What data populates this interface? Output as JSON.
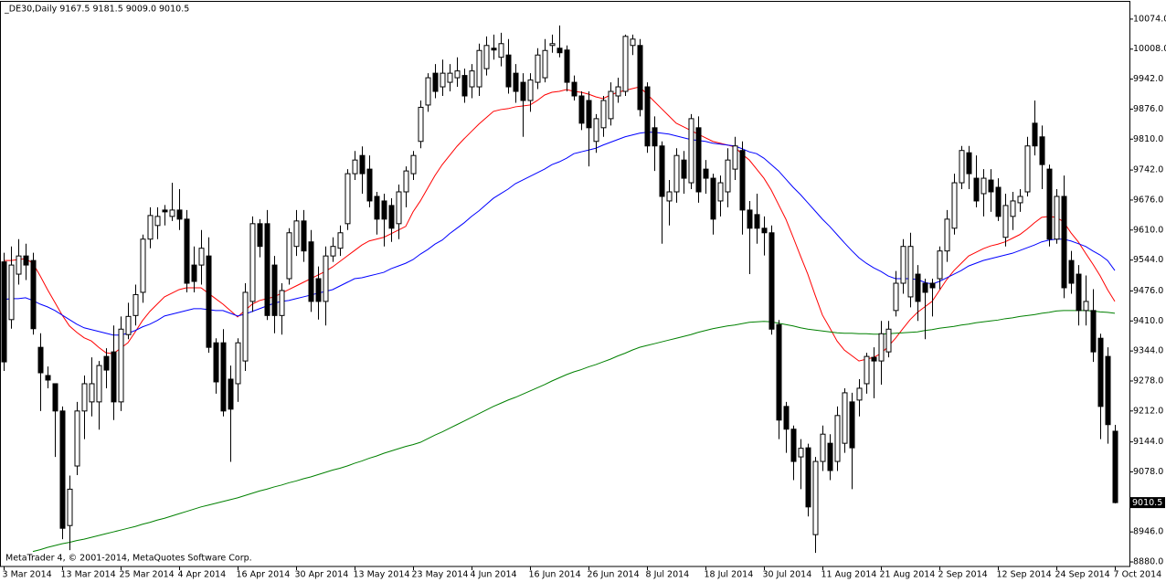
{
  "chart_data": {
    "type": "candlestick",
    "title": "_DE30,Daily  9167.5 9181.5 9009.0 9010.5",
    "footer": "MetaTrader 4, © 2001-2014, MetaQuotes Software Corp.",
    "categories": [
      "3 Mar 2014",
      null,
      null,
      null,
      null,
      null,
      null,
      null,
      "13 Mar 2014",
      null,
      null,
      null,
      null,
      null,
      null,
      null,
      "25 Mar 2014",
      null,
      null,
      null,
      null,
      null,
      null,
      null,
      "4 Apr 2014",
      null,
      null,
      null,
      null,
      null,
      null,
      null,
      "16 Apr 2014",
      null,
      null,
      null,
      null,
      null,
      null,
      null,
      "30 Apr 2014",
      null,
      null,
      null,
      null,
      null,
      null,
      null,
      "13 May 2014",
      null,
      null,
      null,
      null,
      null,
      null,
      null,
      "23 May 2014",
      null,
      null,
      null,
      null,
      null,
      null,
      null,
      "4 Jun 2014",
      null,
      null,
      null,
      null,
      null,
      null,
      null,
      "16 Jun 2014",
      null,
      null,
      null,
      null,
      null,
      null,
      null,
      "26 Jun 2014",
      null,
      null,
      null,
      null,
      null,
      null,
      null,
      "8 Jul 2014",
      null,
      null,
      null,
      null,
      null,
      null,
      null,
      "18 Jul 2014",
      null,
      null,
      null,
      null,
      null,
      null,
      null,
      "30 Jul 2014",
      null,
      null,
      null,
      null,
      null,
      null,
      null,
      "11 Aug 2014",
      null,
      null,
      null,
      null,
      null,
      null,
      null,
      "21 Aug 2014",
      null,
      null,
      null,
      null,
      null,
      null,
      null,
      "2 Sep 2014",
      null,
      null,
      null,
      null,
      null,
      null,
      null,
      "12 Sep 2014",
      null,
      null,
      null,
      null,
      null,
      null,
      null,
      "24 Sep 2014",
      null,
      null,
      null,
      null,
      null,
      null,
      null,
      "7 Oct 2014"
    ],
    "open": [
      9540,
      9413,
      9513,
      9553,
      9543,
      9352,
      9290,
      9272,
      9212,
      8960,
      9091,
      9212,
      9232,
      9232,
      9332,
      9342,
      9232,
      9380,
      9422,
      9473,
      9590,
      9620,
      9654,
      9640,
      9654,
      9634,
      9533,
      9533,
      9553,
      9362,
      9362,
      9282,
      9272,
      9322,
      9453,
      9624,
      9624,
      9533,
      9422,
      9503,
      9574,
      9630,
      9584,
      9503,
      9453,
      9553,
      9570,
      9624,
      9734,
      9774,
      9744,
      9684,
      9674,
      9664,
      9624,
      9694,
      9734,
      9805,
      9885,
      9955,
      9925,
      9935,
      9945,
      9950,
      9925,
      9925,
      9965,
      10010,
      9990,
      9995,
      9955,
      9935,
      9895,
      9935,
      9945,
      10016,
      10010,
      10006,
      9935,
      9905,
      9895,
      9805,
      9835,
      9855,
      9905,
      9915,
      10016,
      10016,
      9925,
      9835,
      9795,
      9674,
      9694,
      9764,
      9714,
      9835,
      9744,
      9724,
      9674,
      9694,
      9744,
      9785,
      9654,
      9644,
      9614,
      9604,
      9402,
      9222,
      9172,
      9111,
      9131,
      8940,
      9101,
      9141,
      9101,
      9141,
      9232,
      9236,
      9272,
      9330,
      9322,
      9342,
      9433,
      9493,
      9463,
      9513,
      9493,
      9493,
      9503,
      9564,
      9614,
      9714,
      9780,
      9724,
      9690,
      9720,
      9704,
      9594,
      9640,
      9670,
      9694,
      9845,
      9815,
      9744,
      9590,
      9684,
      9543,
      9513,
      9433,
      9433,
      9372,
      9332,
      9167.5
    ],
    "high": [
      9560,
      9574,
      9590,
      9580,
      9560,
      9383,
      9310,
      9272,
      9222,
      9070,
      9232,
      9290,
      9330,
      9322,
      9350,
      9400,
      9420,
      9450,
      9490,
      9600,
      9660,
      9660,
      9665,
      9714,
      9700,
      9654,
      9574,
      9610,
      9594,
      9372,
      9392,
      9312,
      9372,
      9493,
      9640,
      9634,
      9654,
      9553,
      9493,
      9614,
      9654,
      9654,
      9610,
      9530,
      9574,
      9594,
      9620,
      9744,
      9784,
      9794,
      9774,
      9694,
      9690,
      9680,
      9710,
      9750,
      9784,
      9895,
      9955,
      9975,
      9985,
      9975,
      9990,
      9965,
      9975,
      10020,
      10036,
      10040,
      10044,
      10030,
      9975,
      9955,
      9955,
      10010,
      10030,
      10040,
      10060,
      10016,
      9950,
      9915,
      9915,
      9865,
      9905,
      9935,
      9945,
      10040,
      10040,
      10030,
      9935,
      9860,
      9805,
      9720,
      9790,
      9784,
      9865,
      9860,
      9764,
      9734,
      9730,
      9790,
      9815,
      9805,
      9674,
      9690,
      9640,
      9620,
      9412,
      9232,
      9180,
      9150,
      9140,
      9111,
      9180,
      9161,
      9222,
      9262,
      9252,
      9282,
      9340,
      9352,
      9410,
      9410,
      9520,
      9590,
      9604,
      9533,
      9503,
      9503,
      9574,
      9654,
      9734,
      9795,
      9795,
      9774,
      9744,
      9744,
      9724,
      9690,
      9694,
      9700,
      9815,
      9895,
      9840,
      9754,
      9700,
      9730,
      9564,
      9533,
      9510,
      9480,
      9382,
      9352,
      9181.5
    ],
    "low": [
      9300,
      9393,
      9490,
      9500,
      9380,
      9212,
      9262,
      9111,
      8930,
      8906,
      9071,
      9150,
      9200,
      9171,
      9262,
      9192,
      9212,
      9370,
      9400,
      9450,
      9570,
      9590,
      9620,
      9630,
      9610,
      9473,
      9473,
      9490,
      9340,
      9250,
      9200,
      9100,
      9232,
      9300,
      9430,
      9550,
      9412,
      9383,
      9380,
      9490,
      9553,
      9540,
      9430,
      9413,
      9400,
      9540,
      9553,
      9610,
      9720,
      9690,
      9660,
      9600,
      9574,
      9584,
      9590,
      9660,
      9720,
      9790,
      9870,
      9900,
      9905,
      9915,
      9925,
      9890,
      9900,
      9905,
      9950,
      9985,
      9970,
      9910,
      9890,
      9815,
      9870,
      9920,
      9935,
      10000,
      9990,
      9915,
      9895,
      9830,
      9750,
      9780,
      9815,
      9840,
      9890,
      9905,
      9995,
      9860,
      9780,
      9740,
      9580,
      9620,
      9670,
      9690,
      9700,
      9670,
      9690,
      9600,
      9640,
      9660,
      9720,
      9600,
      9513,
      9580,
      9554,
      9380,
      9150,
      9120,
      9060,
      9040,
      8980,
      8900,
      9080,
      9060,
      9080,
      9120,
      9040,
      9200,
      9250,
      9240,
      9270,
      9330,
      9420,
      9470,
      9440,
      9410,
      9370,
      9420,
      9480,
      9540,
      9600,
      9700,
      9700,
      9660,
      9640,
      9650,
      9630,
      9574,
      9610,
      9650,
      9684,
      9774,
      9700,
      9574,
      9580,
      9460,
      9470,
      9400,
      9400,
      9320,
      9150,
      9140,
      9009
    ],
    "close": [
      9320,
      9533,
      9553,
      9533,
      9393,
      9296,
      9280,
      9212,
      8954,
      9040,
      9212,
      9272,
      9272,
      9312,
      9302,
      9232,
      9392,
      9420,
      9468,
      9590,
      9642,
      9640,
      9650,
      9654,
      9634,
      9493,
      9497,
      9570,
      9352,
      9276,
      9212,
      9216,
      9362,
      9473,
      9624,
      9574,
      9422,
      9422,
      9477,
      9604,
      9630,
      9564,
      9453,
      9453,
      9553,
      9574,
      9604,
      9734,
      9764,
      9734,
      9674,
      9634,
      9634,
      9614,
      9694,
      9740,
      9774,
      9880,
      9945,
      9915,
      9955,
      9955,
      9960,
      9905,
      9960,
      10005,
      10016,
      10006,
      10020,
      9925,
      9915,
      9895,
      9940,
      9995,
      10005,
      10020,
      10000,
      9935,
      9905,
      9845,
      9835,
      9855,
      9895,
      9915,
      9925,
      10036,
      10030,
      9875,
      9795,
      9795,
      9684,
      9694,
      9774,
      9724,
      9855,
      9694,
      9724,
      9634,
      9714,
      9764,
      9795,
      9654,
      9614,
      9614,
      9604,
      9392,
      9192,
      9172,
      9101,
      9130,
      9001,
      9101,
      9161,
      9081,
      9202,
      9252,
      9131,
      9262,
      9332,
      9322,
      9382,
      9392,
      9493,
      9574,
      9574,
      9453,
      9473,
      9483,
      9564,
      9634,
      9714,
      9785,
      9734,
      9674,
      9724,
      9694,
      9640,
      9664,
      9674,
      9684,
      9795,
      9795,
      9754,
      9590,
      9684,
      9483,
      9493,
      9433,
      9453,
      9342,
      9222,
      9182,
      9010.5
    ],
    "up_color": "#ffffff",
    "down_color": "#000000",
    "overlays": [
      {
        "color": "#ff0000",
        "values": [
          9543,
          9543,
          9545,
          9547,
          9537,
          9509,
          9479,
          9451,
          9423,
          9399,
          9385,
          9373,
          9366,
          9352,
          9340,
          9338,
          9350,
          9362,
          9386,
          9411,
          9431,
          9447,
          9463,
          9471,
          9479,
          9483,
          9483,
          9483,
          9471,
          9459,
          9447,
          9433,
          9419,
          9433,
          9447,
          9455,
          9459,
          9463,
          9471,
          9479,
          9487,
          9495,
          9503,
          9511,
          9519,
          9529,
          9541,
          9553,
          9565,
          9577,
          9586,
          9590,
          9594,
          9602,
          9610,
          9618,
          9650,
          9674,
          9702,
          9730,
          9754,
          9774,
          9794,
          9811,
          9827,
          9843,
          9857,
          9871,
          9875,
          9877,
          9881,
          9883,
          9885,
          9895,
          9907,
          9913,
          9915,
          9919,
          9915,
          9913,
          9909,
          9903,
          9899,
          9907,
          9913,
          9917,
          9921,
          9925,
          9909,
          9893,
          9877,
          9861,
          9845,
          9837,
          9829,
          9821,
          9813,
          9805,
          9801,
          9797,
          9793,
          9777,
          9764,
          9744,
          9724,
          9698,
          9666,
          9634,
          9594,
          9553,
          9513,
          9467,
          9423,
          9395,
          9366,
          9346,
          9334,
          9322,
          9326,
          9330,
          9338,
          9354,
          9372,
          9393,
          9413,
          9429,
          9441,
          9453,
          9477,
          9501,
          9521,
          9537,
          9553,
          9561,
          9569,
          9575,
          9579,
          9584,
          9592,
          9600,
          9612,
          9626,
          9638,
          9640,
          9638,
          9628,
          9604,
          9584,
          9559,
          9535,
          9509,
          9479,
          9453
        ]
      },
      {
        "color": "#0000ff",
        "values": [
          9457,
          9459,
          9459,
          9461,
          9455,
          9447,
          9441,
          9433,
          9423,
          9413,
          9403,
          9395,
          9391,
          9387,
          9383,
          9379,
          9379,
          9383,
          9389,
          9397,
          9403,
          9411,
          9421,
          9425,
          9429,
          9433,
          9437,
          9437,
          9435,
          9433,
          9433,
          9427,
          9421,
          9425,
          9431,
          9437,
          9443,
          9449,
          9453,
          9455,
          9459,
          9463,
          9467,
          9471,
          9475,
          9479,
          9487,
          9495,
          9503,
          9505,
          9509,
          9513,
          9517,
          9525,
          9531,
          9537,
          9545,
          9557,
          9567,
          9579,
          9588,
          9602,
          9614,
          9626,
          9640,
          9652,
          9666,
          9680,
          9690,
          9700,
          9712,
          9720,
          9728,
          9736,
          9744,
          9754,
          9760,
          9768,
          9778,
          9782,
          9786,
          9790,
          9797,
          9803,
          9809,
          9815,
          9819,
          9823,
          9825,
          9825,
          9823,
          9821,
          9817,
          9813,
          9809,
          9807,
          9805,
          9801,
          9799,
          9797,
          9795,
          9789,
          9782,
          9778,
          9768,
          9754,
          9740,
          9722,
          9704,
          9688,
          9670,
          9652,
          9634,
          9618,
          9600,
          9582,
          9565,
          9549,
          9537,
          9527,
          9519,
          9509,
          9503,
          9503,
          9503,
          9501,
          9495,
          9491,
          9497,
          9505,
          9513,
          9521,
          9531,
          9537,
          9543,
          9547,
          9551,
          9555,
          9559,
          9565,
          9571,
          9577,
          9584,
          9588,
          9590,
          9590,
          9586,
          9580,
          9574,
          9564,
          9555,
          9543,
          9521
        ]
      },
      {
        "color": "#008000",
        "values": [
          null,
          null,
          null,
          null,
          8903,
          8907,
          8912,
          8916,
          8920,
          8923,
          8927,
          8930,
          8934,
          8938,
          8942,
          8946,
          8950,
          8954,
          8958,
          8963,
          8967,
          8972,
          8976,
          8981,
          8986,
          8991,
          8996,
          9001,
          9005,
          9009,
          9013,
          9017,
          9021,
          9026,
          9031,
          9036,
          9040,
          9045,
          9049,
          9054,
          9058,
          9063,
          9067,
          9072,
          9077,
          9082,
          9086,
          9091,
          9097,
          9102,
          9108,
          9113,
          9119,
          9124,
          9129,
          9134,
          9138,
          9143,
          9151,
          9159,
          9166,
          9174,
          9182,
          9190,
          9198,
          9206,
          9214,
          9222,
          9229,
          9236,
          9242,
          9249,
          9256,
          9263,
          9270,
          9278,
          9285,
          9292,
          9298,
          9303,
          9309,
          9314,
          9320,
          9326,
          9333,
          9339,
          9346,
          9352,
          9356,
          9360,
          9364,
          9368,
          9372,
          9376,
          9380,
          9385,
          9389,
          9393,
          9396,
          9399,
          9401,
          9404,
          9407,
          9408,
          9409,
          9408,
          9405,
          9402,
          9399,
          9395,
          9392,
          9390,
          9388,
          9386,
          9384,
          9383,
          9383,
          9382,
          9382,
          9381,
          9381,
          9382,
          9383,
          9384,
          9385,
          9386,
          9389,
          9391,
          9394,
          9396,
          9398,
          9401,
          9403,
          9406,
          9408,
          9410,
          9412,
          9415,
          9417,
          9420,
          9422,
          9424,
          9427,
          9429,
          9432,
          9433,
          9433,
          9433,
          9433,
          9432,
          9430,
          9429,
          9427
        ]
      }
    ],
    "ylim": [
      8870,
      10112
    ],
    "yticks": [
      {
        "value": 10074,
        "label": "10074.0"
      },
      {
        "value": 10008,
        "label": "10008.0"
      },
      {
        "value": 9942,
        "label": "9942.0"
      },
      {
        "value": 9876,
        "label": "9876.0"
      },
      {
        "value": 9810,
        "label": "9810.0"
      },
      {
        "value": 9742,
        "label": "9742.0"
      },
      {
        "value": 9676,
        "label": "9676.0"
      },
      {
        "value": 9610,
        "label": "9610.0"
      },
      {
        "value": 9544,
        "label": "9544.0"
      },
      {
        "value": 9476,
        "label": "9476.0"
      },
      {
        "value": 9410,
        "label": "9410.0"
      },
      {
        "value": 9344,
        "label": "9344.0"
      },
      {
        "value": 9278,
        "label": "9278.0"
      },
      {
        "value": 9212,
        "label": "9212.0"
      },
      {
        "value": 9144,
        "label": "9144.0"
      },
      {
        "value": 9078,
        "label": "9078.0"
      },
      {
        "value": 8946,
        "label": "8946.0"
      },
      {
        "value": 8880,
        "label": "8880.0"
      }
    ],
    "last_price": 9010.5
  }
}
